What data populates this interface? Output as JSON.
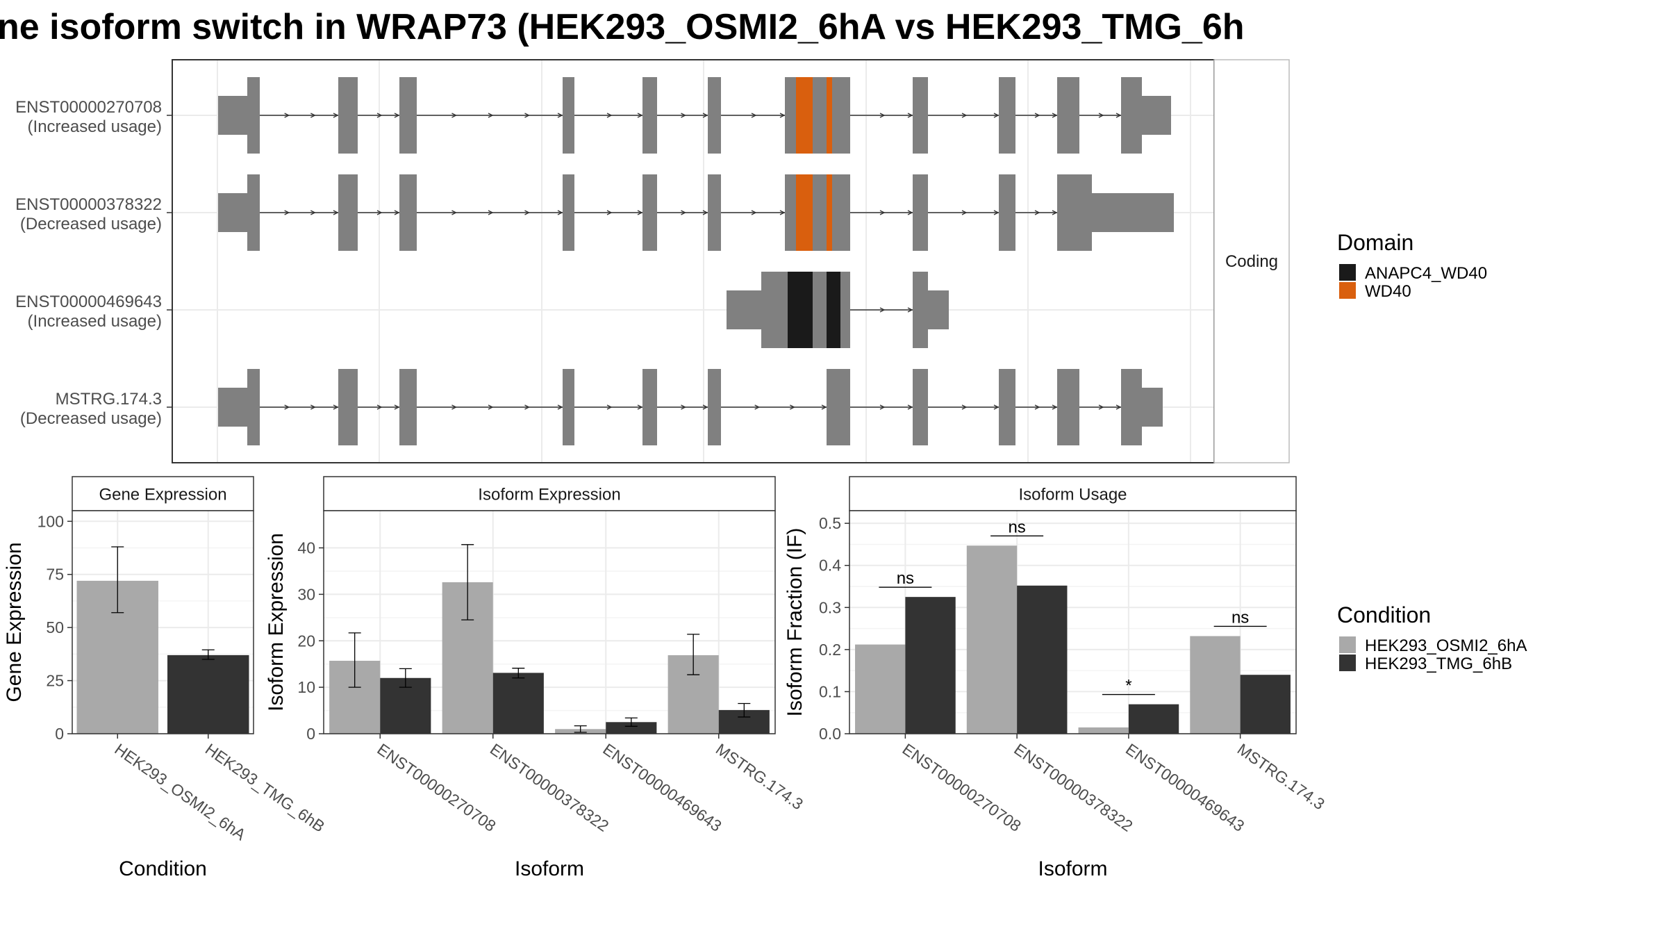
{
  "title": "ne isoform switch in WRAP73 (HEK293_OSMI2_6hA vs HEK293_TMG_6h",
  "colors": {
    "domain_anapc4": "#1a1a1a",
    "domain_wd40": "#d95f0e",
    "exon": "#808080",
    "cond_a": "#a9a9a9",
    "cond_b": "#333333"
  },
  "structure": {
    "strip_label": "Coding",
    "tracks": [
      {
        "id": "ENST00000270708",
        "label": "(Increased usage)"
      },
      {
        "id": "ENST00000378322",
        "label": "(Decreased usage)"
      },
      {
        "id": "ENST00000469643",
        "label": "(Increased usage)"
      },
      {
        "id": "MSTRG.174.3",
        "label": "(Decreased usage)"
      }
    ]
  },
  "legend_domain": {
    "title": "Domain",
    "items": [
      {
        "label": "ANAPC4_WD40",
        "color": "#1a1a1a"
      },
      {
        "label": "WD40",
        "color": "#d95f0e"
      }
    ]
  },
  "legend_condition": {
    "title": "Condition",
    "items": [
      {
        "label": "HEK293_OSMI2_6hA",
        "color": "#a9a9a9"
      },
      {
        "label": "HEK293_TMG_6hB",
        "color": "#333333"
      }
    ]
  },
  "chart_data": [
    {
      "type": "bar",
      "title": "Gene Expression",
      "xlabel": "Condition",
      "ylabel": "Gene Expression",
      "ylim": [
        0,
        105
      ],
      "yticks": [
        0,
        25,
        50,
        75,
        100
      ],
      "categories": [
        "HEK293_OSMI2_6hA",
        "HEK293_TMG_6hB"
      ],
      "values": [
        72,
        37
      ],
      "error": [
        [
          57,
          88
        ],
        [
          35,
          39.5
        ]
      ],
      "grid": true
    },
    {
      "type": "bar",
      "title": "Isoform Expression",
      "xlabel": "Isoform",
      "ylabel": "Isoform Expression",
      "ylim": [
        0,
        48
      ],
      "yticks": [
        0,
        10,
        20,
        30,
        40
      ],
      "categories": [
        "ENST00000270708",
        "ENST00000378322",
        "ENST00000469643",
        "MSTRG.174.3"
      ],
      "series": [
        {
          "name": "HEK293_OSMI2_6hA",
          "values": [
            15.7,
            32.6,
            1.0,
            16.9
          ],
          "error": [
            [
              10,
              21.7
            ],
            [
              24.5,
              40.7
            ],
            [
              0.3,
              1.7
            ],
            [
              12.7,
              21.4
            ]
          ]
        },
        {
          "name": "HEK293_TMG_6hB",
          "values": [
            12.0,
            13.1,
            2.5,
            5.1
          ],
          "error": [
            [
              10,
              14
            ],
            [
              12,
              14.1
            ],
            [
              1.6,
              3.4
            ],
            [
              3.6,
              6.5
            ]
          ]
        }
      ],
      "grid": true
    },
    {
      "type": "bar",
      "title": "Isoform Usage",
      "xlabel": "Isoform",
      "ylabel": "Isoform Fraction (IF)",
      "ylim": [
        0,
        0.53
      ],
      "yticks": [
        0.0,
        0.1,
        0.2,
        0.3,
        0.4,
        0.5
      ],
      "ytick_labels": [
        "0.0",
        "0.1",
        "0.2",
        "0.3",
        "0.4",
        "0.5"
      ],
      "categories": [
        "ENST00000270708",
        "ENST00000378322",
        "ENST00000469643",
        "MSTRG.174.3"
      ],
      "series": [
        {
          "name": "HEK293_OSMI2_6hA",
          "values": [
            0.212,
            0.447,
            0.015,
            0.232
          ]
        },
        {
          "name": "HEK293_TMG_6hB",
          "values": [
            0.325,
            0.352,
            0.07,
            0.14
          ]
        }
      ],
      "significance": [
        "ns",
        "ns",
        "*",
        "ns"
      ],
      "grid": true
    }
  ]
}
